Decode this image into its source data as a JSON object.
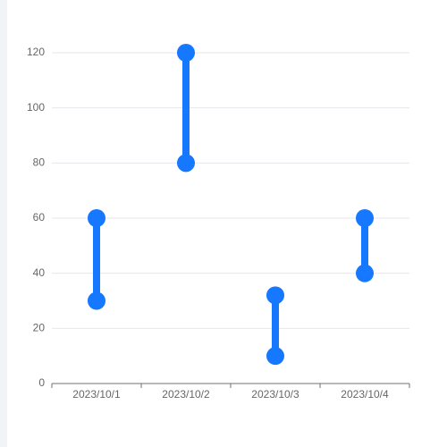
{
  "chart_data": {
    "type": "dumbbell",
    "categories": [
      "2023/10/1",
      "2023/10/2",
      "2023/10/3",
      "2023/10/4"
    ],
    "low": [
      30,
      80,
      10,
      40
    ],
    "high": [
      60,
      120,
      32,
      60
    ],
    "color": "#1677ff",
    "ylim": [
      0,
      120
    ],
    "yticks": [
      0,
      20,
      40,
      60,
      80,
      100,
      120
    ],
    "grid": true
  }
}
